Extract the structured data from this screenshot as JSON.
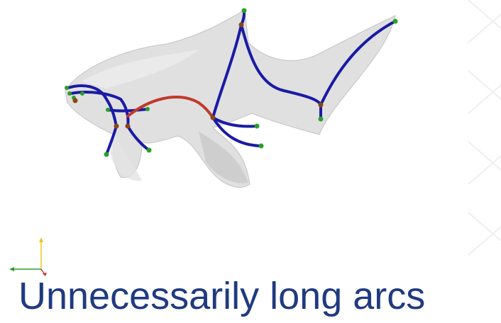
{
  "slide": {
    "caption": "Unnecessarily long arcs"
  },
  "colors": {
    "mesh_fill": "#d6d6d6",
    "mesh_edge": "#bdbdbd",
    "skeleton_arc": "#1a1aa6",
    "long_arc": "#c0392b",
    "endpoint_node": "#2aa02a",
    "junction_node": "#8b4513",
    "caption_text": "#1f3a80",
    "axis_y": "#e6c81e",
    "axis_x": "#2aa02a",
    "axis_z": "#c0392b"
  },
  "icons": {
    "axes_gizmo": "xyz-axes-icon"
  }
}
